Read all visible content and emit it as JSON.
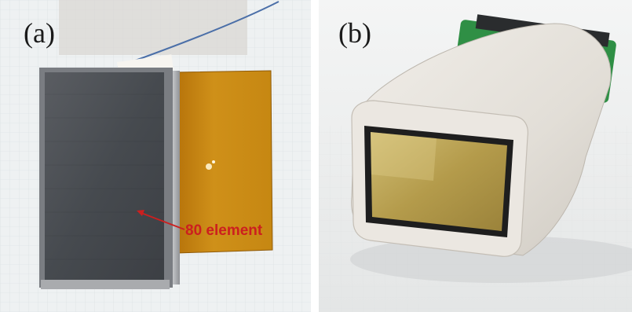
{
  "panels": [
    {
      "label": "(a)",
      "annotation": "80 element"
    },
    {
      "label": "(b)"
    }
  ],
  "colors": {
    "annotation": "#cc1f1f",
    "kapton_film": "#c98a12",
    "probe_housing": "#e6e2dc",
    "array_face": "#b39a4a",
    "pcb_green": "#2f8f45",
    "transducer_dark": "#4a4d52"
  }
}
